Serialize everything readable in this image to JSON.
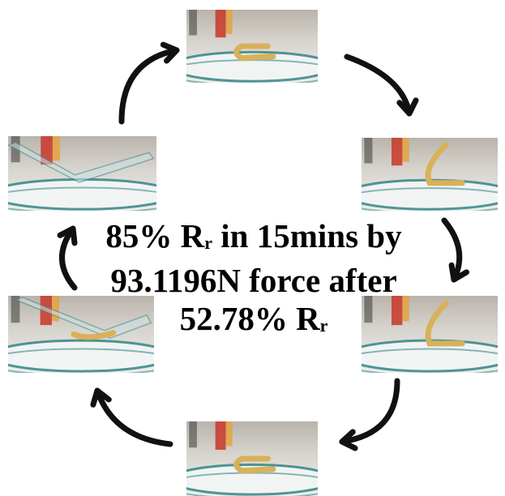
{
  "caption": {
    "line1_prefix": "85% R",
    "line1_sub": "r",
    "line1_suffix": " in 15mins by",
    "line2": "93.1196N force after",
    "line3_prefix": "52.78% R",
    "line3_sub": "r"
  },
  "colors": {
    "arrow": "#111111",
    "sample": "#d9b15a",
    "dish_rim": "#3e8c8c",
    "background": "#ffffff"
  },
  "photos": [
    {
      "id": "top",
      "shape": "u-shape"
    },
    {
      "id": "upper-right",
      "shape": "open-v"
    },
    {
      "id": "lower-right",
      "shape": "open-v"
    },
    {
      "id": "bottom",
      "shape": "u-shape"
    },
    {
      "id": "lower-left",
      "shape": "pressed-under-glass"
    },
    {
      "id": "upper-left",
      "shape": "flattened-under-glass"
    }
  ]
}
